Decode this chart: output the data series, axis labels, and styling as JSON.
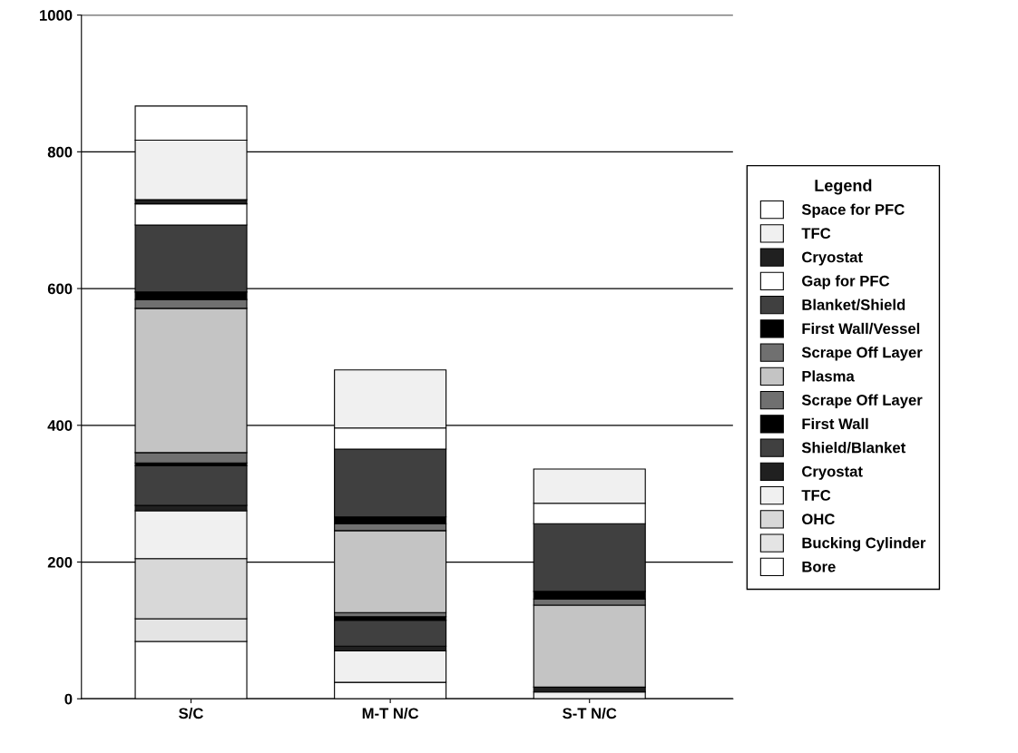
{
  "chart_data": {
    "type": "bar",
    "stacked": true,
    "categories": [
      "S/C",
      "M-T N/C",
      "S-T N/C"
    ],
    "legend_title": "Legend",
    "legend": "right",
    "grid": "y",
    "ylim": [
      0,
      1000
    ],
    "yticks": [
      0,
      200,
      400,
      600,
      800,
      1000
    ],
    "series": [
      {
        "name": "Bore",
        "color": "#ffffff",
        "values": [
          84,
          24,
          0
        ]
      },
      {
        "name": "Bucking Cylinder",
        "color": "#e4e4e4",
        "values": [
          33,
          0,
          0
        ]
      },
      {
        "name": "OHC",
        "color": "#d8d8d8",
        "values": [
          88,
          0,
          0
        ]
      },
      {
        "name": "TFC",
        "color": "#f0f0f0",
        "values": [
          70,
          46,
          10
        ]
      },
      {
        "name": "Cryostat",
        "color": "#202020",
        "values": [
          8,
          7,
          7
        ]
      },
      {
        "name": "Shield/Blanket",
        "color": "#404040",
        "values": [
          58,
          38,
          0
        ]
      },
      {
        "name": "First Wall",
        "color": "#000000",
        "values": [
          4,
          5,
          0
        ]
      },
      {
        "name": "Scrape Off Layer",
        "color": "#707070",
        "values": [
          15,
          6,
          0
        ]
      },
      {
        "name": "Plasma",
        "color": "#c4c4c4",
        "values": [
          211,
          120,
          120
        ]
      },
      {
        "name": "Scrape Off Layer",
        "color": "#707070",
        "values": [
          13,
          10,
          9
        ]
      },
      {
        "name": "First Wall/Vessel",
        "color": "#000000",
        "values": [
          11,
          10,
          11
        ]
      },
      {
        "name": "Blanket/Shield",
        "color": "#404040",
        "values": [
          98,
          99,
          99
        ]
      },
      {
        "name": "Gap for PFC",
        "color": "#ffffff",
        "values": [
          31,
          31,
          30
        ]
      },
      {
        "name": "Cryostat",
        "color": "#202020",
        "values": [
          6,
          0,
          0
        ]
      },
      {
        "name": "TFC",
        "color": "#f0f0f0",
        "values": [
          87,
          85,
          50
        ]
      },
      {
        "name": "Space for PFC",
        "color": "#ffffff",
        "values": [
          50,
          0,
          0
        ]
      }
    ]
  }
}
